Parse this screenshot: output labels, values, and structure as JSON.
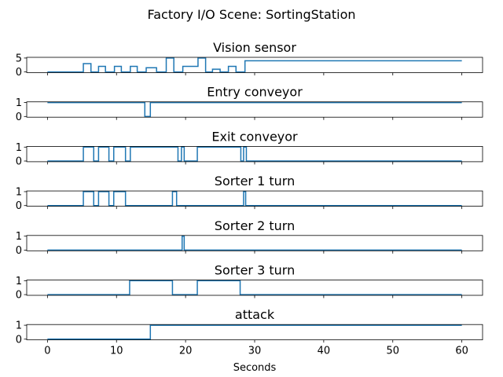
{
  "chart_data": {
    "type": "line",
    "title": "Factory I/O Scene: SortingStation",
    "xlabel": "Seconds",
    "xlim": [
      0,
      60
    ],
    "xticks": [
      0,
      10,
      20,
      30,
      40,
      50,
      60
    ],
    "color": "#1f77b4",
    "grid": false,
    "legend": "none",
    "step": "post",
    "panels": [
      {
        "title": "Vision sensor",
        "ylim": [
          0,
          5
        ],
        "yticks": [
          0,
          5
        ],
        "points": [
          [
            0,
            0
          ],
          [
            5.2,
            0
          ],
          [
            5.2,
            3
          ],
          [
            6.3,
            3
          ],
          [
            6.3,
            0
          ],
          [
            7.4,
            0
          ],
          [
            7.4,
            2
          ],
          [
            8.4,
            2
          ],
          [
            8.4,
            0
          ],
          [
            9.7,
            0
          ],
          [
            9.7,
            2
          ],
          [
            10.7,
            2
          ],
          [
            10.7,
            0
          ],
          [
            12,
            0
          ],
          [
            12,
            2
          ],
          [
            13,
            2
          ],
          [
            13,
            0
          ],
          [
            14.3,
            0
          ],
          [
            14.3,
            1.5
          ],
          [
            15.8,
            1.5
          ],
          [
            15.8,
            0
          ],
          [
            17.2,
            0
          ],
          [
            17.2,
            5
          ],
          [
            18.3,
            5
          ],
          [
            18.3,
            0
          ],
          [
            19.6,
            0
          ],
          [
            19.6,
            2
          ],
          [
            21.8,
            2
          ],
          [
            21.8,
            5
          ],
          [
            22.9,
            5
          ],
          [
            22.9,
            0
          ],
          [
            23.9,
            0
          ],
          [
            23.9,
            1
          ],
          [
            25,
            1
          ],
          [
            25,
            0
          ],
          [
            26.2,
            0
          ],
          [
            26.2,
            2
          ],
          [
            27.3,
            2
          ],
          [
            27.3,
            0
          ],
          [
            28.6,
            0
          ],
          [
            28.6,
            4
          ],
          [
            60,
            4
          ]
        ]
      },
      {
        "title": "Entry conveyor",
        "ylim": [
          0,
          1
        ],
        "yticks": [
          0,
          1
        ],
        "points": [
          [
            0,
            1
          ],
          [
            14.1,
            1
          ],
          [
            14.1,
            0
          ],
          [
            14.9,
            0
          ],
          [
            14.9,
            1
          ],
          [
            60,
            1
          ]
        ]
      },
      {
        "title": "Exit conveyor",
        "ylim": [
          0,
          1
        ],
        "yticks": [
          0,
          1
        ],
        "points": [
          [
            0,
            0
          ],
          [
            5.2,
            0
          ],
          [
            5.2,
            1
          ],
          [
            6.7,
            1
          ],
          [
            6.7,
            0
          ],
          [
            7.4,
            0
          ],
          [
            7.4,
            1
          ],
          [
            8.9,
            1
          ],
          [
            8.9,
            0
          ],
          [
            9.6,
            0
          ],
          [
            9.6,
            1
          ],
          [
            11.3,
            1
          ],
          [
            11.3,
            0
          ],
          [
            12,
            0
          ],
          [
            12,
            1
          ],
          [
            18.9,
            1
          ],
          [
            18.9,
            0
          ],
          [
            19.4,
            0
          ],
          [
            19.4,
            1
          ],
          [
            19.8,
            1
          ],
          [
            19.8,
            0
          ],
          [
            21.7,
            0
          ],
          [
            21.7,
            1
          ],
          [
            28,
            1
          ],
          [
            28,
            0
          ],
          [
            28.4,
            0
          ],
          [
            28.4,
            1
          ],
          [
            28.8,
            1
          ],
          [
            28.8,
            0
          ],
          [
            60,
            0
          ]
        ]
      },
      {
        "title": "Sorter 1 turn",
        "ylim": [
          0,
          1
        ],
        "yticks": [
          0,
          1
        ],
        "points": [
          [
            0,
            0
          ],
          [
            5.2,
            0
          ],
          [
            5.2,
            1
          ],
          [
            6.7,
            1
          ],
          [
            6.7,
            0
          ],
          [
            7.4,
            0
          ],
          [
            7.4,
            1
          ],
          [
            8.9,
            1
          ],
          [
            8.9,
            0
          ],
          [
            9.6,
            0
          ],
          [
            9.6,
            1
          ],
          [
            11.3,
            1
          ],
          [
            11.3,
            0
          ],
          [
            18.1,
            0
          ],
          [
            18.1,
            1
          ],
          [
            18.7,
            1
          ],
          [
            18.7,
            0
          ],
          [
            28.4,
            0
          ],
          [
            28.4,
            1
          ],
          [
            28.7,
            1
          ],
          [
            28.7,
            0
          ],
          [
            60,
            0
          ]
        ]
      },
      {
        "title": "Sorter 2 turn",
        "ylim": [
          0,
          1
        ],
        "yticks": [
          0,
          1
        ],
        "points": [
          [
            0,
            0
          ],
          [
            19.5,
            0
          ],
          [
            19.5,
            1
          ],
          [
            19.8,
            1
          ],
          [
            19.8,
            0
          ],
          [
            60,
            0
          ]
        ]
      },
      {
        "title": "Sorter 3 turn",
        "ylim": [
          0,
          1
        ],
        "yticks": [
          0,
          1
        ],
        "points": [
          [
            0,
            0
          ],
          [
            11.9,
            0
          ],
          [
            11.9,
            1
          ],
          [
            18.1,
            1
          ],
          [
            18.1,
            0
          ],
          [
            21.7,
            0
          ],
          [
            21.7,
            1
          ],
          [
            27.9,
            1
          ],
          [
            27.9,
            0
          ],
          [
            60,
            0
          ]
        ]
      },
      {
        "title": "attack",
        "ylim": [
          0,
          1
        ],
        "yticks": [
          0,
          1
        ],
        "points": [
          [
            0,
            0
          ],
          [
            14.9,
            0
          ],
          [
            14.9,
            1
          ],
          [
            60,
            1
          ]
        ]
      }
    ]
  }
}
